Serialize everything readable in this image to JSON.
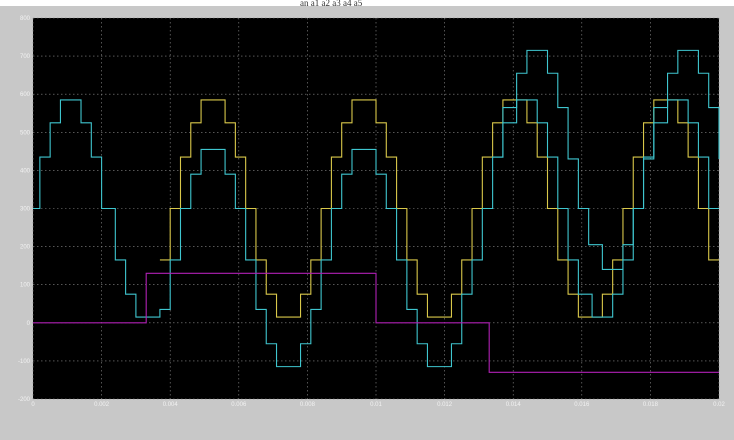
{
  "top_caption": "an     a1     a2     a3     a4     a5",
  "colors": {
    "background": "#000000",
    "grid": "#8a8a8a",
    "tick_text": "#f2f2f2",
    "frame": "#c8c8c8"
  },
  "chart_data": {
    "type": "line",
    "title": "",
    "xlabel": "",
    "ylabel": "",
    "xlim": [
      0,
      0.02
    ],
    "ylim": [
      -200,
      800
    ],
    "grid": true,
    "x_ticks": [
      0,
      0.002,
      0.004,
      0.006,
      0.008,
      0.01,
      0.012,
      0.014,
      0.016,
      0.018,
      0.02
    ],
    "x_tick_labels": [
      "0",
      "0.002",
      "0.004",
      "0.006",
      "0.008",
      "0.01",
      "0.012",
      "0.014",
      "0.016",
      "0.018",
      "0.02"
    ],
    "y_ticks": [
      -200,
      -100,
      0,
      100,
      200,
      300,
      400,
      500,
      600,
      700,
      800
    ],
    "y_tick_labels": [
      "-200",
      "-100",
      "0",
      "100",
      "200",
      "300",
      "400",
      "500",
      "600",
      "700",
      "800"
    ],
    "series": [
      {
        "color": "#d9c84a",
        "step": true,
        "points": [
          [
            0.0037,
            165
          ],
          [
            0.004,
            300
          ],
          [
            0.0043,
            435
          ],
          [
            0.0046,
            525
          ],
          [
            0.0049,
            585
          ],
          [
            0.0053,
            585
          ],
          [
            0.0056,
            525
          ],
          [
            0.0059,
            435
          ],
          [
            0.0062,
            300
          ],
          [
            0.0065,
            165
          ],
          [
            0.0068,
            75
          ],
          [
            0.0071,
            15
          ],
          [
            0.0075,
            15
          ],
          [
            0.0078,
            75
          ],
          [
            0.0081,
            165
          ],
          [
            0.0084,
            300
          ],
          [
            0.0087,
            435
          ],
          [
            0.009,
            525
          ],
          [
            0.0093,
            585
          ],
          [
            0.0097,
            585
          ],
          [
            0.01,
            525
          ],
          [
            0.0103,
            435
          ],
          [
            0.0106,
            300
          ],
          [
            0.0109,
            165
          ],
          [
            0.0112,
            75
          ],
          [
            0.0115,
            15
          ],
          [
            0.0119,
            15
          ],
          [
            0.0122,
            75
          ],
          [
            0.0125,
            165
          ],
          [
            0.0128,
            300
          ],
          [
            0.0131,
            435
          ],
          [
            0.0134,
            525
          ],
          [
            0.0137,
            585
          ],
          [
            0.0141,
            585
          ],
          [
            0.0144,
            525
          ],
          [
            0.0147,
            435
          ],
          [
            0.015,
            300
          ],
          [
            0.0153,
            165
          ],
          [
            0.0156,
            75
          ],
          [
            0.0159,
            15
          ],
          [
            0.0163,
            15
          ],
          [
            0.0166,
            75
          ],
          [
            0.0169,
            165
          ],
          [
            0.0172,
            300
          ],
          [
            0.0175,
            435
          ],
          [
            0.0178,
            525
          ],
          [
            0.0181,
            585
          ],
          [
            0.0185,
            585
          ],
          [
            0.0188,
            525
          ],
          [
            0.0191,
            435
          ],
          [
            0.0194,
            300
          ],
          [
            0.0197,
            165
          ],
          [
            0.02,
            165
          ]
        ]
      },
      {
        "color": "#3fc6cf",
        "step": true,
        "points": [
          [
            0.0,
            300
          ],
          [
            0.0002,
            435
          ],
          [
            0.0005,
            525
          ],
          [
            0.0008,
            585
          ],
          [
            0.0011,
            585
          ],
          [
            0.0014,
            525
          ],
          [
            0.0017,
            435
          ],
          [
            0.002,
            300
          ],
          [
            0.0024,
            165
          ],
          [
            0.0027,
            75
          ],
          [
            0.003,
            15
          ],
          [
            0.0033,
            15
          ],
          [
            0.0037,
            35
          ],
          [
            0.004,
            165
          ],
          [
            0.0043,
            300
          ],
          [
            0.0046,
            390
          ],
          [
            0.0049,
            455
          ],
          [
            0.0053,
            455
          ],
          [
            0.0056,
            390
          ],
          [
            0.0059,
            300
          ],
          [
            0.0062,
            165
          ],
          [
            0.0065,
            35
          ],
          [
            0.0068,
            -55
          ],
          [
            0.0071,
            -115
          ],
          [
            0.0075,
            -115
          ],
          [
            0.0078,
            -55
          ],
          [
            0.0081,
            35
          ],
          [
            0.0084,
            165
          ],
          [
            0.0087,
            300
          ],
          [
            0.009,
            390
          ],
          [
            0.0093,
            455
          ],
          [
            0.0097,
            455
          ],
          [
            0.01,
            390
          ],
          [
            0.0103,
            300
          ],
          [
            0.0106,
            165
          ],
          [
            0.0109,
            35
          ],
          [
            0.0112,
            -55
          ],
          [
            0.0115,
            -115
          ],
          [
            0.0119,
            -115
          ],
          [
            0.0122,
            -55
          ],
          [
            0.0125,
            75
          ],
          [
            0.0128,
            165
          ],
          [
            0.0131,
            300
          ],
          [
            0.0134,
            435
          ],
          [
            0.0137,
            525
          ],
          [
            0.0141,
            585
          ],
          [
            0.0144,
            585
          ],
          [
            0.0147,
            525
          ],
          [
            0.015,
            435
          ],
          [
            0.0153,
            300
          ],
          [
            0.0156,
            165
          ],
          [
            0.0159,
            75
          ],
          [
            0.0163,
            15
          ],
          [
            0.0166,
            15
          ],
          [
            0.0169,
            75
          ],
          [
            0.0172,
            165
          ],
          [
            0.0175,
            300
          ],
          [
            0.0178,
            435
          ],
          [
            0.0181,
            525
          ],
          [
            0.0185,
            585
          ],
          [
            0.0188,
            585
          ],
          [
            0.0191,
            525
          ],
          [
            0.0194,
            435
          ],
          [
            0.0197,
            300
          ],
          [
            0.02,
            300
          ]
        ],
        "segments_after": [
          [
            [
              0.0134,
              435
            ],
            [
              0.0137,
              565
            ],
            [
              0.0141,
              655
            ],
            [
              0.0144,
              715
            ],
            [
              0.0147,
              715
            ],
            [
              0.015,
              655
            ],
            [
              0.0153,
              565
            ],
            [
              0.0156,
              430
            ],
            [
              0.0159,
              300
            ],
            [
              0.0162,
              205
            ],
            [
              0.0166,
              140
            ],
            [
              0.0169,
              140
            ],
            [
              0.0172,
              205
            ],
            [
              0.0175,
              300
            ],
            [
              0.0178,
              430
            ],
            [
              0.0181,
              565
            ],
            [
              0.0185,
              655
            ],
            [
              0.0188,
              715
            ],
            [
              0.0191,
              715
            ],
            [
              0.0194,
              655
            ],
            [
              0.0197,
              565
            ],
            [
              0.02,
              430
            ]
          ]
        ]
      },
      {
        "color": "#b020b4",
        "step": true,
        "points": [
          [
            0.0,
            0
          ],
          [
            0.0033,
            0
          ],
          [
            0.0033,
            130
          ],
          [
            0.01,
            130
          ],
          [
            0.01,
            0
          ],
          [
            0.0133,
            0
          ],
          [
            0.0133,
            -130
          ],
          [
            0.02,
            -130
          ],
          [
            0.02,
            -130
          ]
        ]
      }
    ]
  }
}
